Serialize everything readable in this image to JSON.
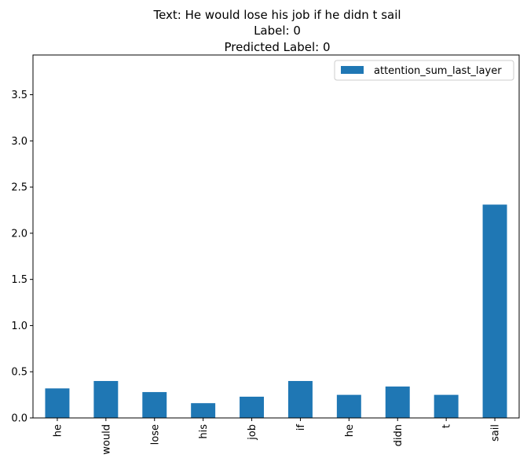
{
  "chart_data": {
    "type": "bar",
    "title_lines": [
      "Text: He would lose his job if he didn t sail",
      "Label: 0",
      "Predicted Label: 0"
    ],
    "xlabel": "",
    "ylabel": "",
    "categories": [
      "he",
      "would",
      "lose",
      "his",
      "job",
      "if",
      "he",
      "didn",
      "t",
      "sail"
    ],
    "series": [
      {
        "name": "attention_sum_last_layer",
        "color": "#1f77b4",
        "values": [
          0.32,
          0.4,
          0.28,
          0.16,
          0.23,
          0.4,
          0.25,
          0.34,
          0.25,
          2.31
        ]
      }
    ],
    "ylim": [
      0,
      3.93
    ],
    "yticks": [
      0.0,
      0.5,
      1.0,
      1.5,
      2.0,
      2.5,
      3.0,
      3.5
    ],
    "ytick_labels": [
      "0.0",
      "0.5",
      "1.0",
      "1.5",
      "2.0",
      "2.5",
      "3.0",
      "3.5"
    ],
    "grid": false,
    "legend_position": "upper right"
  }
}
